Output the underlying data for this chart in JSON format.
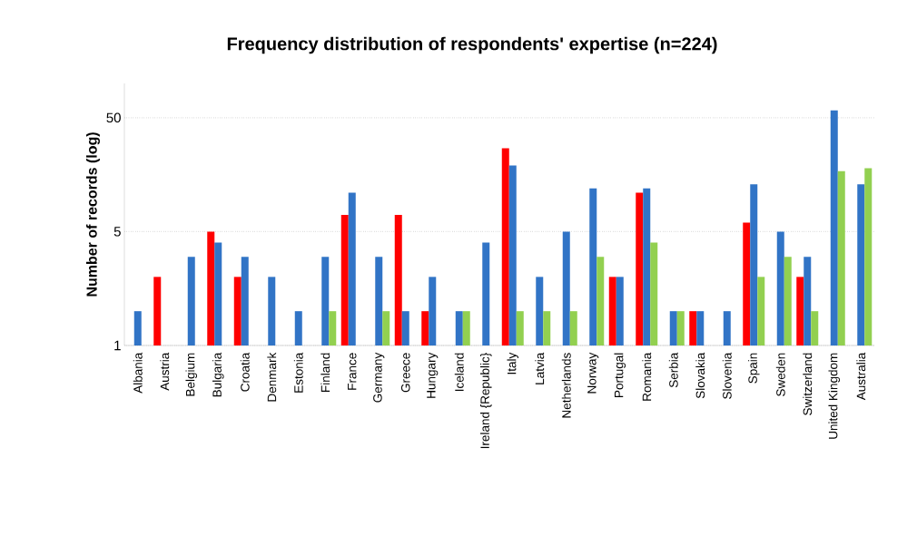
{
  "chart_data": {
    "type": "bar",
    "title": "Frequency distribution of respondents' expertise (n=224)",
    "ylabel": "Number of records (log)",
    "categories": [
      "Albania",
      "Austria",
      "Belgium",
      "Bulgaria",
      "Croatia",
      "Denmark",
      "Estonia",
      "Finland",
      "France",
      "Germany",
      "Greece",
      "Hungary",
      "Iceland",
      "Ireland {Republic}",
      "Italy",
      "Latvia",
      "Netherlands",
      "Norway",
      "Portugal",
      "Romania",
      "Serbia",
      "Slovakia",
      "Slovenia",
      "Spain",
      "Sweden",
      "Switzerland",
      "United Kingdom",
      "Australia"
    ],
    "series": [
      {
        "color": "#ff0000",
        "values": [
          null,
          2,
          null,
          5,
          2,
          null,
          null,
          null,
          7,
          null,
          7,
          1,
          null,
          null,
          27,
          null,
          null,
          null,
          2,
          11,
          null,
          1,
          null,
          6,
          null,
          2,
          null,
          null
        ]
      },
      {
        "color": "#3174c6",
        "values": [
          1,
          null,
          3,
          4,
          3,
          2,
          1,
          3,
          11,
          3,
          1,
          2,
          1,
          4,
          19,
          2,
          5,
          12,
          2,
          12,
          1,
          1,
          1,
          13,
          5,
          3,
          58,
          13
        ]
      },
      {
        "color": "#92d050",
        "values": [
          null,
          null,
          null,
          null,
          null,
          null,
          null,
          1,
          null,
          1,
          null,
          null,
          1,
          null,
          1,
          1,
          1,
          3,
          null,
          4,
          1,
          null,
          null,
          2,
          3,
          1,
          17,
          18
        ]
      }
    ],
    "log": true,
    "ylim": [
      0.5,
      100
    ],
    "yticks": [
      {
        "value": 0.5,
        "label": "1"
      },
      5,
      50
    ],
    "grid": "y"
  }
}
